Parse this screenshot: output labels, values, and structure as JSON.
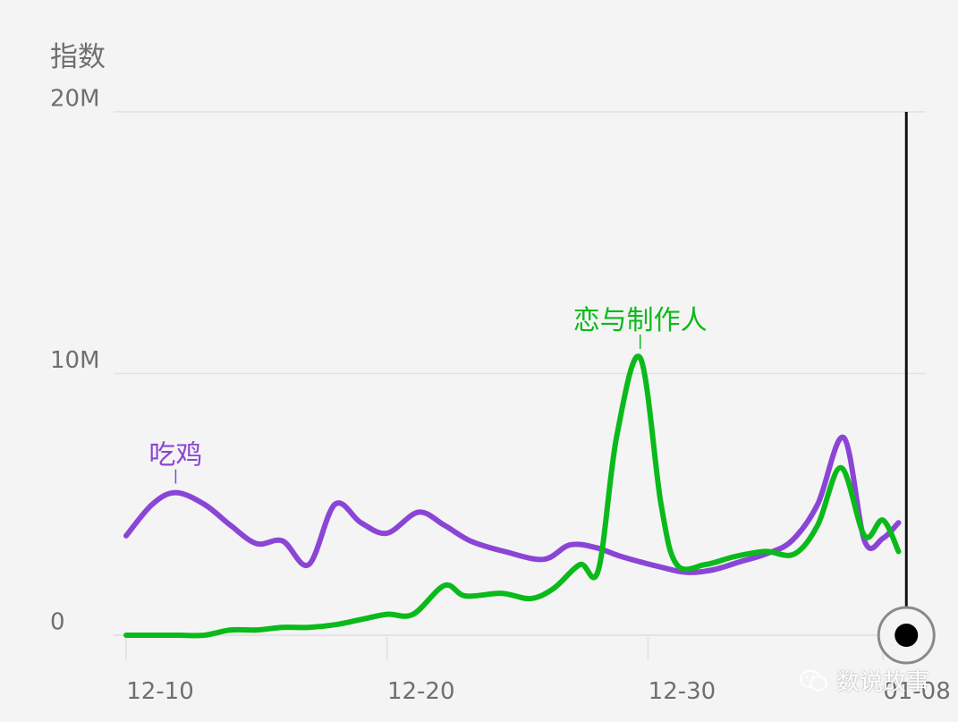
{
  "chart_data": {
    "type": "line",
    "y_unit_label": "指数",
    "ylim": [
      0,
      20000000
    ],
    "y_ticks": [
      {
        "value": 0,
        "label": "0"
      },
      {
        "value": 10000000,
        "label": "10M"
      },
      {
        "value": 20000000,
        "label": "20M"
      }
    ],
    "x_ticks": [
      {
        "day": 0,
        "label": "12-10"
      },
      {
        "day": 10,
        "label": "12-20"
      },
      {
        "day": 20,
        "label": "12-30"
      },
      {
        "day": 29,
        "label": "01-08"
      }
    ],
    "x_range": [
      0,
      30.2
    ],
    "series": [
      {
        "name": "吃鸡",
        "color": "#8b45d6",
        "label_at_day": 1.9,
        "points": [
          [
            0,
            3.8
          ],
          [
            1,
            5.0
          ],
          [
            1.9,
            5.45
          ],
          [
            3,
            5.0
          ],
          [
            4,
            4.2
          ],
          [
            5,
            3.5
          ],
          [
            6,
            3.6
          ],
          [
            7,
            2.7
          ],
          [
            8,
            5.0
          ],
          [
            9,
            4.3
          ],
          [
            10,
            3.9
          ],
          [
            11.2,
            4.7
          ],
          [
            12.2,
            4.2
          ],
          [
            13.2,
            3.6
          ],
          [
            14.5,
            3.2
          ],
          [
            16,
            2.9
          ],
          [
            17,
            3.45
          ],
          [
            18,
            3.35
          ],
          [
            19,
            3.0
          ],
          [
            20.5,
            2.6
          ],
          [
            21.5,
            2.4
          ],
          [
            22.5,
            2.5
          ],
          [
            23.5,
            2.8
          ],
          [
            24.5,
            3.1
          ],
          [
            25.5,
            3.6
          ],
          [
            26.5,
            5.0
          ],
          [
            27.5,
            7.55
          ],
          [
            28.3,
            3.6
          ],
          [
            29,
            3.7
          ],
          [
            29.6,
            4.3
          ]
        ]
      },
      {
        "name": "恋与制作人",
        "color": "#0aba1a",
        "label_at_day": 19.7,
        "points": [
          [
            0,
            0
          ],
          [
            1,
            0
          ],
          [
            2,
            0
          ],
          [
            3,
            0
          ],
          [
            4,
            0.2
          ],
          [
            5,
            0.2
          ],
          [
            6,
            0.3
          ],
          [
            7,
            0.3
          ],
          [
            8,
            0.4
          ],
          [
            9,
            0.6
          ],
          [
            10,
            0.8
          ],
          [
            11,
            0.8
          ],
          [
            12.2,
            1.9
          ],
          [
            13,
            1.5
          ],
          [
            14.4,
            1.6
          ],
          [
            15.5,
            1.4
          ],
          [
            16.4,
            1.8
          ],
          [
            17.4,
            2.7
          ],
          [
            18.1,
            2.5
          ],
          [
            18.8,
            7.6
          ],
          [
            19.7,
            10.6
          ],
          [
            20.5,
            5.0
          ],
          [
            21.1,
            2.7
          ],
          [
            22.2,
            2.7
          ],
          [
            23.3,
            3.0
          ],
          [
            24.5,
            3.2
          ],
          [
            25.6,
            3.1
          ],
          [
            26.5,
            4.2
          ],
          [
            27.4,
            6.4
          ],
          [
            28.3,
            3.8
          ],
          [
            29,
            4.4
          ],
          [
            29.6,
            3.2
          ]
        ]
      }
    ],
    "value_scale": 1000000,
    "cursor_day": 29.9
  },
  "watermark": {
    "text": "数说故事",
    "icon": "wechat-icon"
  }
}
